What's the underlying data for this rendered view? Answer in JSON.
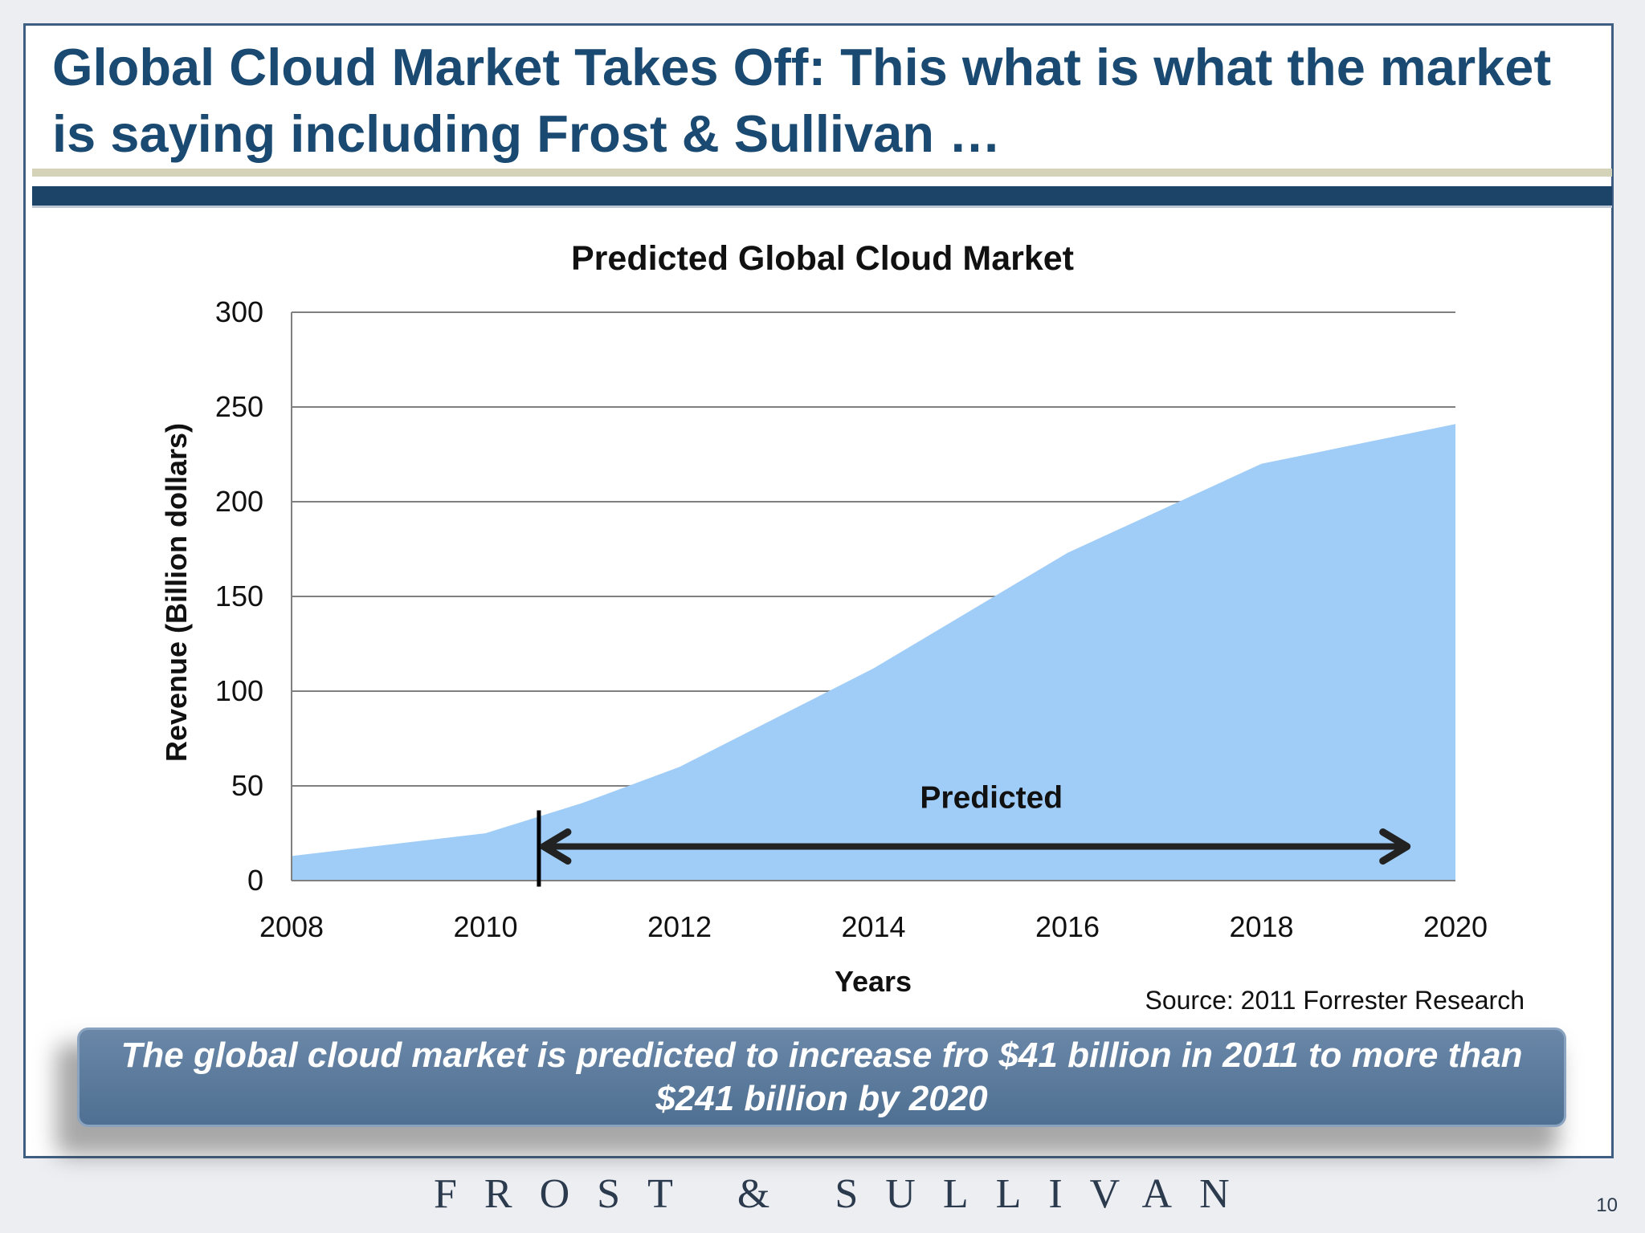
{
  "slide": {
    "title": "Global Cloud Market Takes Off: This what is what the market is saying including Frost & Sullivan …",
    "source": "Source: 2011 Forrester Research",
    "callout": "The global cloud market is predicted to increase fro $41 billion in 2011 to more than $241 billion by 2020",
    "logo": "FROST & SULLIVAN",
    "page_number": "10"
  },
  "colors": {
    "title": "#1a4a72",
    "area_fill": "#a0cdf7",
    "gridline": "#808080",
    "arrow": "#222222"
  },
  "chart_data": {
    "type": "area",
    "title": "Predicted Global Cloud Market",
    "xlabel": "Years",
    "ylabel": "Revenue (Billion dollars)",
    "xlim": [
      2008,
      2020
    ],
    "ylim": [
      0,
      300
    ],
    "x_ticks": [
      "2008",
      "2010",
      "2012",
      "2014",
      "2016",
      "2018",
      "2020"
    ],
    "y_ticks": [
      "0",
      "50",
      "100",
      "150",
      "200",
      "250",
      "300"
    ],
    "grid": true,
    "series": [
      {
        "x": [
          2008,
          2010,
          2011,
          2012,
          2014,
          2016,
          2018,
          2020
        ],
        "y": [
          13,
          25,
          41,
          60,
          112,
          173,
          220,
          241
        ]
      }
    ],
    "annotations": [
      {
        "text": "Predicted",
        "type": "double-arrow",
        "x_start": 2010.55,
        "x_end": 2019.55,
        "y": 18,
        "marker_x": 2010.55
      }
    ]
  }
}
